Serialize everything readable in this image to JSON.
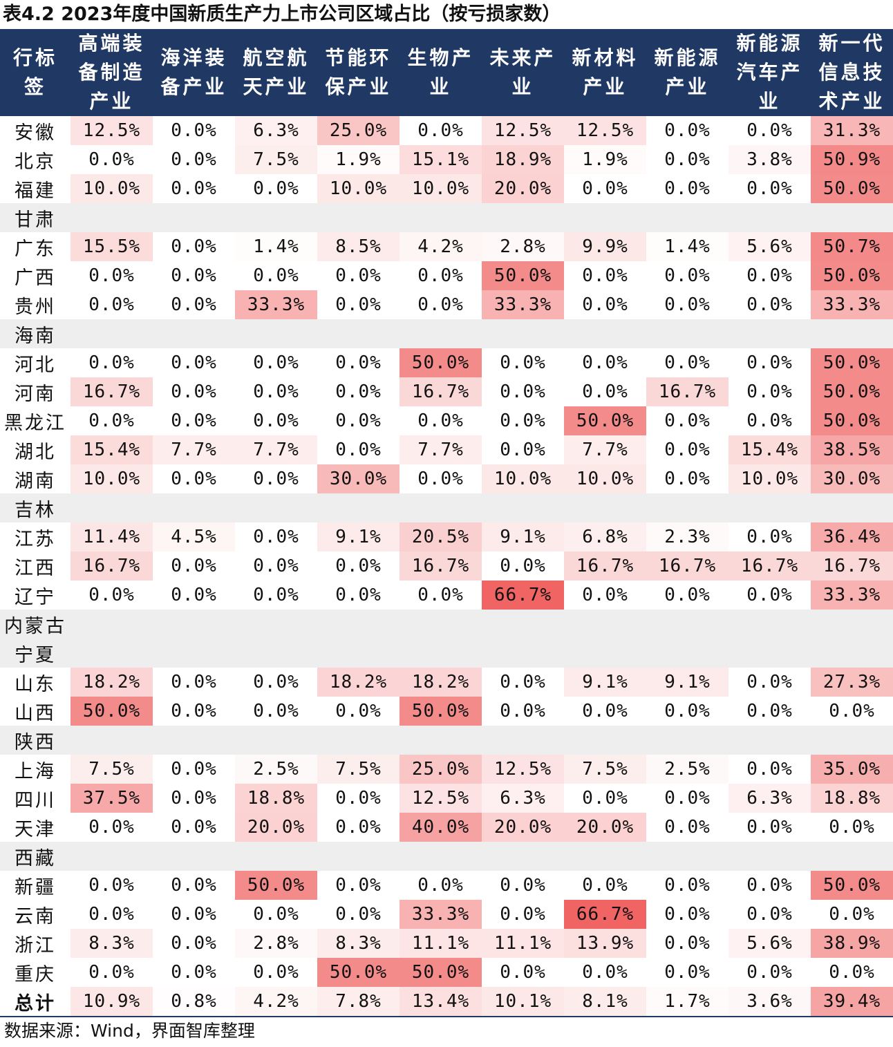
{
  "title": "表4.2 2023年度中国新质生产力上市公司区域占比（按亏损家数）",
  "headers": [
    "行标\n签",
    "高端装\n备制造\n产业",
    "海洋装\n备产业",
    "航空航\n天产业",
    "节能环\n保产业",
    "生物产\n业",
    "未来产\n业",
    "新材料\n产业",
    "新能源\n产业",
    "新能源\n汽车产\n业",
    "新一代\n信息技\n术产业"
  ],
  "rows": [
    {
      "region": "安徽",
      "values": [
        "12.5%",
        "0.0%",
        "6.3%",
        "25.0%",
        "0.0%",
        "12.5%",
        "12.5%",
        "0.0%",
        "0.0%",
        "31.3%"
      ]
    },
    {
      "region": "北京",
      "values": [
        "0.0%",
        "0.0%",
        "7.5%",
        "1.9%",
        "15.1%",
        "18.9%",
        "1.9%",
        "0.0%",
        "3.8%",
        "50.9%"
      ]
    },
    {
      "region": "福建",
      "values": [
        "10.0%",
        "0.0%",
        "0.0%",
        "10.0%",
        "10.0%",
        "20.0%",
        "0.0%",
        "0.0%",
        "0.0%",
        "50.0%"
      ]
    },
    {
      "region": "甘肃",
      "values": []
    },
    {
      "region": "广东",
      "values": [
        "15.5%",
        "0.0%",
        "1.4%",
        "8.5%",
        "4.2%",
        "2.8%",
        "9.9%",
        "1.4%",
        "5.6%",
        "50.7%"
      ]
    },
    {
      "region": "广西",
      "values": [
        "0.0%",
        "0.0%",
        "0.0%",
        "0.0%",
        "0.0%",
        "50.0%",
        "0.0%",
        "0.0%",
        "0.0%",
        "50.0%"
      ]
    },
    {
      "region": "贵州",
      "values": [
        "0.0%",
        "0.0%",
        "33.3%",
        "0.0%",
        "0.0%",
        "33.3%",
        "0.0%",
        "0.0%",
        "0.0%",
        "33.3%"
      ]
    },
    {
      "region": "海南",
      "values": []
    },
    {
      "region": "河北",
      "values": [
        "0.0%",
        "0.0%",
        "0.0%",
        "0.0%",
        "50.0%",
        "0.0%",
        "0.0%",
        "0.0%",
        "0.0%",
        "50.0%"
      ]
    },
    {
      "region": "河南",
      "values": [
        "16.7%",
        "0.0%",
        "0.0%",
        "0.0%",
        "16.7%",
        "0.0%",
        "0.0%",
        "16.7%",
        "0.0%",
        "50.0%"
      ]
    },
    {
      "region": "黑龙江",
      "values": [
        "0.0%",
        "0.0%",
        "0.0%",
        "0.0%",
        "0.0%",
        "0.0%",
        "50.0%",
        "0.0%",
        "0.0%",
        "50.0%"
      ]
    },
    {
      "region": "湖北",
      "values": [
        "15.4%",
        "7.7%",
        "7.7%",
        "0.0%",
        "7.7%",
        "0.0%",
        "7.7%",
        "0.0%",
        "15.4%",
        "38.5%"
      ]
    },
    {
      "region": "湖南",
      "values": [
        "10.0%",
        "0.0%",
        "0.0%",
        "30.0%",
        "0.0%",
        "10.0%",
        "10.0%",
        "0.0%",
        "10.0%",
        "30.0%"
      ]
    },
    {
      "region": "吉林",
      "values": []
    },
    {
      "region": "江苏",
      "values": [
        "11.4%",
        "4.5%",
        "0.0%",
        "9.1%",
        "20.5%",
        "9.1%",
        "6.8%",
        "2.3%",
        "0.0%",
        "36.4%"
      ]
    },
    {
      "region": "江西",
      "values": [
        "16.7%",
        "0.0%",
        "0.0%",
        "0.0%",
        "16.7%",
        "0.0%",
        "16.7%",
        "16.7%",
        "16.7%",
        "16.7%"
      ]
    },
    {
      "region": "辽宁",
      "values": [
        "0.0%",
        "0.0%",
        "0.0%",
        "0.0%",
        "0.0%",
        "66.7%",
        "0.0%",
        "0.0%",
        "0.0%",
        "33.3%"
      ]
    },
    {
      "region": "内蒙古",
      "values": []
    },
    {
      "region": "宁夏",
      "values": []
    },
    {
      "region": "山东",
      "values": [
        "18.2%",
        "0.0%",
        "0.0%",
        "18.2%",
        "18.2%",
        "0.0%",
        "9.1%",
        "9.1%",
        "0.0%",
        "27.3%"
      ]
    },
    {
      "region": "山西",
      "values": [
        "50.0%",
        "0.0%",
        "0.0%",
        "0.0%",
        "50.0%",
        "0.0%",
        "0.0%",
        "0.0%",
        "0.0%",
        "0.0%"
      ]
    },
    {
      "region": "陕西",
      "values": []
    },
    {
      "region": "上海",
      "values": [
        "7.5%",
        "0.0%",
        "2.5%",
        "7.5%",
        "25.0%",
        "12.5%",
        "7.5%",
        "2.5%",
        "0.0%",
        "35.0%"
      ]
    },
    {
      "region": "四川",
      "values": [
        "37.5%",
        "0.0%",
        "18.8%",
        "0.0%",
        "12.5%",
        "6.3%",
        "0.0%",
        "0.0%",
        "6.3%",
        "18.8%"
      ]
    },
    {
      "region": "天津",
      "values": [
        "0.0%",
        "0.0%",
        "20.0%",
        "0.0%",
        "40.0%",
        "20.0%",
        "20.0%",
        "0.0%",
        "0.0%",
        "0.0%"
      ]
    },
    {
      "region": "西藏",
      "values": []
    },
    {
      "region": "新疆",
      "values": [
        "0.0%",
        "0.0%",
        "50.0%",
        "0.0%",
        "0.0%",
        "0.0%",
        "0.0%",
        "0.0%",
        "0.0%",
        "50.0%"
      ]
    },
    {
      "region": "云南",
      "values": [
        "0.0%",
        "0.0%",
        "0.0%",
        "0.0%",
        "33.3%",
        "0.0%",
        "66.7%",
        "0.0%",
        "0.0%",
        "0.0%"
      ]
    },
    {
      "region": "浙江",
      "values": [
        "8.3%",
        "0.0%",
        "2.8%",
        "8.3%",
        "11.1%",
        "11.1%",
        "13.9%",
        "0.0%",
        "5.6%",
        "38.9%"
      ]
    },
    {
      "region": "重庆",
      "values": [
        "0.0%",
        "0.0%",
        "0.0%",
        "50.0%",
        "50.0%",
        "0.0%",
        "0.0%",
        "0.0%",
        "0.0%",
        "0.0%"
      ]
    },
    {
      "region": "总计",
      "values": [
        "10.9%",
        "0.8%",
        "4.2%",
        "7.8%",
        "13.4%",
        "10.1%",
        "8.1%",
        "1.7%",
        "3.6%",
        "39.4%"
      ],
      "total": true
    }
  ],
  "source": "数据来源：Wind，界面智库整理",
  "colors": {
    "header_bg": "#1f3864",
    "header_text": "#ffffff",
    "heat_max": "#f06464",
    "empty_row": "#eeeeee"
  }
}
